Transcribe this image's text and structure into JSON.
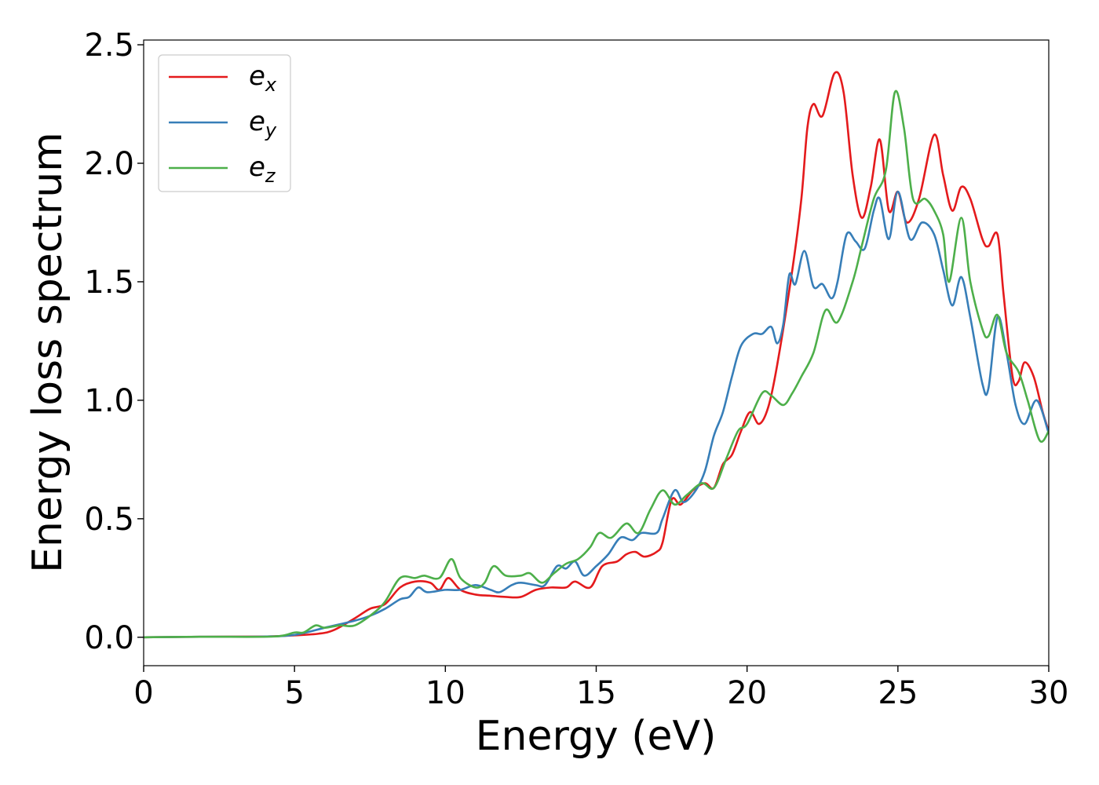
{
  "chart_data": {
    "type": "line",
    "title": "",
    "xlabel": "Energy (eV)",
    "ylabel": "Energy loss spectrum",
    "xlim": [
      0,
      30
    ],
    "ylim": [
      -0.12,
      2.52
    ],
    "xticks": [
      0,
      5,
      10,
      15,
      20,
      25,
      30
    ],
    "xtick_labels": [
      "0",
      "5",
      "10",
      "15",
      "20",
      "25",
      "30"
    ],
    "yticks": [
      0.0,
      0.5,
      1.0,
      1.5,
      2.0,
      2.5
    ],
    "ytick_labels": [
      "0.0",
      "0.5",
      "1.0",
      "1.5",
      "2.0",
      "2.5"
    ],
    "grid": false,
    "legend_position": "top-left",
    "series": [
      {
        "name_base": "e",
        "name_sub": "x",
        "color": "#e41a1c",
        "points": [
          [
            0,
            0
          ],
          [
            2,
            0.002
          ],
          [
            4,
            0.003
          ],
          [
            5,
            0.008
          ],
          [
            5.8,
            0.015
          ],
          [
            6.3,
            0.03
          ],
          [
            7,
            0.08
          ],
          [
            7.5,
            0.12
          ],
          [
            8,
            0.14
          ],
          [
            8.5,
            0.21
          ],
          [
            9,
            0.235
          ],
          [
            9.5,
            0.23
          ],
          [
            9.8,
            0.2
          ],
          [
            10.1,
            0.25
          ],
          [
            10.5,
            0.2
          ],
          [
            11,
            0.18
          ],
          [
            11.5,
            0.175
          ],
          [
            12,
            0.17
          ],
          [
            12.5,
            0.17
          ],
          [
            13,
            0.2
          ],
          [
            13.5,
            0.21
          ],
          [
            14,
            0.21
          ],
          [
            14.3,
            0.235
          ],
          [
            14.8,
            0.21
          ],
          [
            15.2,
            0.3
          ],
          [
            15.7,
            0.32
          ],
          [
            16,
            0.35
          ],
          [
            16.3,
            0.36
          ],
          [
            16.6,
            0.34
          ],
          [
            17,
            0.36
          ],
          [
            17.2,
            0.4
          ],
          [
            17.5,
            0.58
          ],
          [
            17.8,
            0.56
          ],
          [
            18.2,
            0.62
          ],
          [
            18.6,
            0.65
          ],
          [
            18.9,
            0.63
          ],
          [
            19.2,
            0.73
          ],
          [
            19.5,
            0.77
          ],
          [
            19.8,
            0.87
          ],
          [
            20.1,
            0.95
          ],
          [
            20.4,
            0.9
          ],
          [
            20.7,
            0.97
          ],
          [
            21,
            1.15
          ],
          [
            21.5,
            1.55
          ],
          [
            21.8,
            1.85
          ],
          [
            22,
            2.15
          ],
          [
            22.2,
            2.25
          ],
          [
            22.5,
            2.2
          ],
          [
            22.9,
            2.38
          ],
          [
            23.2,
            2.3
          ],
          [
            23.5,
            1.95
          ],
          [
            23.8,
            1.77
          ],
          [
            24.1,
            1.9
          ],
          [
            24.4,
            2.1
          ],
          [
            24.7,
            1.8
          ],
          [
            25,
            1.88
          ],
          [
            25.3,
            1.75
          ],
          [
            25.7,
            1.85
          ],
          [
            26.2,
            2.12
          ],
          [
            26.5,
            1.95
          ],
          [
            26.8,
            1.8
          ],
          [
            27.1,
            1.9
          ],
          [
            27.4,
            1.85
          ],
          [
            27.8,
            1.68
          ],
          [
            28,
            1.65
          ],
          [
            28.3,
            1.7
          ],
          [
            28.5,
            1.45
          ],
          [
            28.8,
            1.1
          ],
          [
            29,
            1.08
          ],
          [
            29.2,
            1.16
          ],
          [
            29.5,
            1.1
          ],
          [
            29.8,
            0.95
          ],
          [
            30,
            0.87
          ]
        ]
      },
      {
        "name_base": "e",
        "name_sub": "y",
        "color": "#377eb8",
        "points": [
          [
            0,
            0
          ],
          [
            2,
            0.002
          ],
          [
            4,
            0.003
          ],
          [
            5,
            0.01
          ],
          [
            6,
            0.04
          ],
          [
            7,
            0.07
          ],
          [
            7.5,
            0.09
          ],
          [
            8,
            0.12
          ],
          [
            8.5,
            0.16
          ],
          [
            8.8,
            0.17
          ],
          [
            9.1,
            0.21
          ],
          [
            9.4,
            0.19
          ],
          [
            10,
            0.2
          ],
          [
            10.5,
            0.2
          ],
          [
            11,
            0.22
          ],
          [
            11.5,
            0.2
          ],
          [
            11.8,
            0.19
          ],
          [
            12.2,
            0.22
          ],
          [
            12.5,
            0.23
          ],
          [
            13,
            0.22
          ],
          [
            13.3,
            0.22
          ],
          [
            13.7,
            0.3
          ],
          [
            14,
            0.29
          ],
          [
            14.3,
            0.32
          ],
          [
            14.6,
            0.26
          ],
          [
            15,
            0.3
          ],
          [
            15.4,
            0.35
          ],
          [
            15.8,
            0.42
          ],
          [
            16.2,
            0.41
          ],
          [
            16.5,
            0.44
          ],
          [
            17,
            0.44
          ],
          [
            17.2,
            0.5
          ],
          [
            17.6,
            0.62
          ],
          [
            17.9,
            0.57
          ],
          [
            18.3,
            0.62
          ],
          [
            18.6,
            0.7
          ],
          [
            18.9,
            0.85
          ],
          [
            19.2,
            0.95
          ],
          [
            19.5,
            1.1
          ],
          [
            19.8,
            1.23
          ],
          [
            20.2,
            1.28
          ],
          [
            20.5,
            1.28
          ],
          [
            20.8,
            1.31
          ],
          [
            21,
            1.24
          ],
          [
            21.2,
            1.32
          ],
          [
            21.4,
            1.53
          ],
          [
            21.6,
            1.49
          ],
          [
            21.9,
            1.63
          ],
          [
            22.2,
            1.48
          ],
          [
            22.5,
            1.49
          ],
          [
            22.8,
            1.43
          ],
          [
            23,
            1.5
          ],
          [
            23.3,
            1.7
          ],
          [
            23.6,
            1.67
          ],
          [
            23.9,
            1.64
          ],
          [
            24.2,
            1.8
          ],
          [
            24.4,
            1.85
          ],
          [
            24.7,
            1.68
          ],
          [
            25,
            1.88
          ],
          [
            25.4,
            1.68
          ],
          [
            25.8,
            1.75
          ],
          [
            26.2,
            1.7
          ],
          [
            26.5,
            1.55
          ],
          [
            26.8,
            1.4
          ],
          [
            27.1,
            1.52
          ],
          [
            27.4,
            1.35
          ],
          [
            27.8,
            1.07
          ],
          [
            28,
            1.05
          ],
          [
            28.3,
            1.35
          ],
          [
            28.6,
            1.2
          ],
          [
            28.9,
            0.98
          ],
          [
            29.2,
            0.9
          ],
          [
            29.6,
            1.0
          ],
          [
            30,
            0.86
          ]
        ]
      },
      {
        "name_base": "e",
        "name_sub": "z",
        "color": "#4daf4a",
        "points": [
          [
            0,
            0
          ],
          [
            2,
            0.002
          ],
          [
            4.3,
            0.003
          ],
          [
            5,
            0.02
          ],
          [
            5.3,
            0.02
          ],
          [
            5.7,
            0.05
          ],
          [
            6,
            0.04
          ],
          [
            6.5,
            0.05
          ],
          [
            7,
            0.05
          ],
          [
            7.6,
            0.1
          ],
          [
            8,
            0.15
          ],
          [
            8.5,
            0.25
          ],
          [
            9,
            0.25
          ],
          [
            9.3,
            0.26
          ],
          [
            9.8,
            0.25
          ],
          [
            10.2,
            0.33
          ],
          [
            10.5,
            0.25
          ],
          [
            11,
            0.21
          ],
          [
            11.3,
            0.23
          ],
          [
            11.6,
            0.3
          ],
          [
            12,
            0.26
          ],
          [
            12.5,
            0.26
          ],
          [
            12.8,
            0.27
          ],
          [
            13.2,
            0.23
          ],
          [
            13.6,
            0.27
          ],
          [
            14,
            0.31
          ],
          [
            14.4,
            0.33
          ],
          [
            14.8,
            0.38
          ],
          [
            15.1,
            0.44
          ],
          [
            15.5,
            0.42
          ],
          [
            16,
            0.48
          ],
          [
            16.4,
            0.44
          ],
          [
            16.8,
            0.54
          ],
          [
            17.2,
            0.62
          ],
          [
            17.6,
            0.56
          ],
          [
            18,
            0.6
          ],
          [
            18.5,
            0.65
          ],
          [
            18.9,
            0.63
          ],
          [
            19.3,
            0.75
          ],
          [
            19.7,
            0.87
          ],
          [
            20,
            0.9
          ],
          [
            20.5,
            1.03
          ],
          [
            20.8,
            1.02
          ],
          [
            21.2,
            0.98
          ],
          [
            21.5,
            1.03
          ],
          [
            21.8,
            1.1
          ],
          [
            22.2,
            1.2
          ],
          [
            22.6,
            1.38
          ],
          [
            23,
            1.33
          ],
          [
            23.5,
            1.5
          ],
          [
            23.8,
            1.65
          ],
          [
            24.2,
            1.85
          ],
          [
            24.6,
            1.97
          ],
          [
            24.9,
            2.3
          ],
          [
            25.2,
            2.15
          ],
          [
            25.5,
            1.85
          ],
          [
            25.9,
            1.85
          ],
          [
            26.2,
            1.8
          ],
          [
            26.5,
            1.7
          ],
          [
            26.7,
            1.5
          ],
          [
            27.1,
            1.77
          ],
          [
            27.4,
            1.5
          ],
          [
            27.8,
            1.3
          ],
          [
            28,
            1.27
          ],
          [
            28.3,
            1.36
          ],
          [
            28.6,
            1.2
          ],
          [
            29,
            1.12
          ],
          [
            29.3,
            1.0
          ],
          [
            29.7,
            0.83
          ],
          [
            30,
            0.87
          ]
        ]
      }
    ]
  }
}
